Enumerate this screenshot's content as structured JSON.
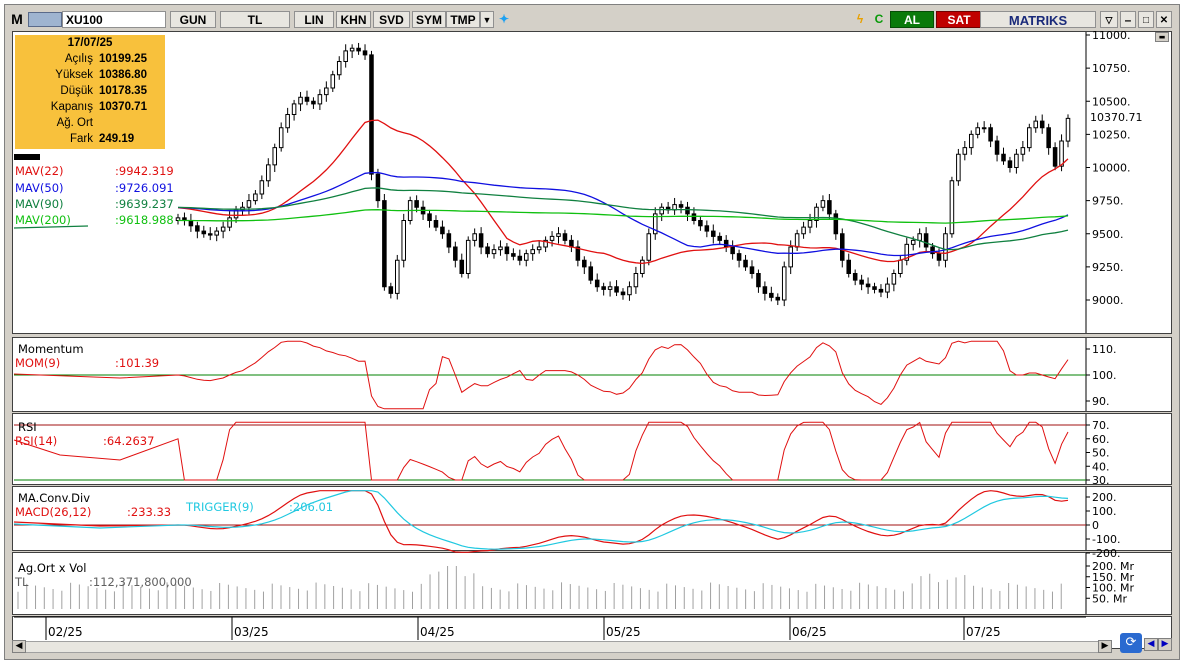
{
  "toolbar": {
    "logo": "M",
    "symbol": "XU100",
    "period": "GUN",
    "currency": "TL",
    "scale": "LIN",
    "buttons": [
      "KHN",
      "SVD",
      "SYM",
      "TMP"
    ],
    "buy_label": "AL",
    "sell_label": "SAT",
    "brand": "MATRIKS",
    "colors": {
      "buy": "#0a7a0a",
      "sell": "#c00000",
      "bg": "#d4d0c8"
    }
  },
  "info": {
    "date": "17/07/25",
    "rows": [
      {
        "label": "Açılış",
        "value": "10199.25"
      },
      {
        "label": "Yüksek",
        "value": "10386.80"
      },
      {
        "label": "Düşük",
        "value": "10178.35"
      },
      {
        "label": "Kapanış",
        "value": "10370.71"
      },
      {
        "label": "Ağ. Ort",
        "value": ""
      },
      {
        "label": "Fark",
        "value": "249.19"
      }
    ]
  },
  "price_panel": {
    "mav": [
      {
        "label": "MAV(22)",
        "value": ":9942.319",
        "color": "#e01010"
      },
      {
        "label": "MAV(50)",
        "value": ":9726.091",
        "color": "#1010e0"
      },
      {
        "label": "MAV(90)",
        "value": ":9639.237",
        "color": "#108040"
      },
      {
        "label": "MAV(200)",
        "value": ":9618.988",
        "color": "#10c010"
      }
    ],
    "last_price_label": "10370.71",
    "y_ticks": [
      "11000.",
      "10750.",
      "10500.",
      "10250.",
      "10000.",
      "9750.",
      "9500.",
      "9250.",
      "9000.",
      "8750."
    ]
  },
  "momentum_panel": {
    "title": "Momentum",
    "label": "MOM(9)",
    "value": ":101.39",
    "y_ticks": [
      "110.",
      "100.",
      "90."
    ]
  },
  "rsi_panel": {
    "title": "RSI",
    "label": "RSI(14)",
    "value": ":64.2637",
    "y_ticks": [
      "70.",
      "60.",
      "50.",
      "40.",
      "30."
    ]
  },
  "macd_panel": {
    "title": "MA.Conv.Div",
    "label": "MACD(26,12)",
    "value": ":233.33",
    "trigger_label": "TRIGGER(9)",
    "trigger_value": ":206.01",
    "y_ticks": [
      "200.",
      "100.",
      "0",
      "-100.",
      "-200."
    ]
  },
  "volume_panel": {
    "title": "Ag.Ort x Vol",
    "unit": "TL",
    "value": ":112,371,800,000",
    "y_ticks": [
      "200. Mr",
      "150. Mr",
      "100. Mr",
      "50. Mr"
    ]
  },
  "x_labels": [
    "02/25",
    "03/25",
    "04/25",
    "05/25",
    "06/25",
    "07/25"
  ],
  "chart_data": [
    {
      "type": "candlestick",
      "title": "XU100",
      "ylim": [
        8750,
        11000
      ],
      "x_range": [
        "2025-02-17",
        "2025-07-17"
      ],
      "candles_sample": [
        {
          "x": "2025-02-20",
          "open": 9500,
          "high": 9560,
          "low": 9440,
          "close": 9520
        },
        {
          "x": "2025-02-27",
          "open": 9470,
          "high": 9650,
          "low": 9450,
          "close": 9620
        },
        {
          "x": "2025-03-05",
          "open": 9900,
          "high": 10050,
          "low": 9880,
          "close": 10020
        },
        {
          "x": "2025-03-12",
          "open": 10400,
          "high": 10560,
          "low": 10380,
          "close": 10530
        },
        {
          "x": "2025-03-18",
          "open": 10850,
          "high": 10950,
          "low": 10820,
          "close": 10900
        },
        {
          "x": "2025-03-21",
          "open": 9950,
          "high": 10100,
          "low": 9700,
          "close": 9750
        },
        {
          "x": "2025-03-24",
          "open": 9400,
          "high": 9700,
          "low": 9000,
          "close": 9050
        },
        {
          "x": "2025-04-07",
          "open": 9300,
          "high": 9380,
          "low": 9050,
          "close": 9200
        },
        {
          "x": "2025-04-25",
          "open": 9350,
          "high": 9420,
          "low": 9250,
          "close": 9300
        },
        {
          "x": "2025-05-08",
          "open": 9100,
          "high": 9180,
          "low": 9050,
          "close": 9100
        },
        {
          "x": "2025-05-20",
          "open": 9700,
          "high": 9760,
          "low": 9620,
          "close": 9680
        },
        {
          "x": "2025-06-04",
          "open": 9200,
          "high": 9260,
          "low": 9000,
          "close": 9030
        },
        {
          "x": "2025-06-12",
          "open": 9650,
          "high": 9750,
          "low": 9580,
          "close": 9700
        },
        {
          "x": "2025-06-24",
          "open": 9150,
          "high": 9200,
          "low": 9080,
          "close": 9120
        },
        {
          "x": "2025-07-02",
          "open": 9500,
          "high": 9950,
          "low": 9400,
          "close": 9900
        },
        {
          "x": "2025-07-09",
          "open": 10300,
          "high": 10350,
          "low": 10200,
          "close": 10280
        },
        {
          "x": "2025-07-14",
          "open": 10250,
          "high": 10300,
          "low": 9980,
          "close": 10010
        },
        {
          "x": "2025-07-17",
          "open": 10199.25,
          "high": 10386.8,
          "low": 10178.35,
          "close": 10370.71
        }
      ],
      "series": [
        {
          "name": "MAV(22)",
          "last": 9942.319
        },
        {
          "name": "MAV(50)",
          "last": 9726.091
        },
        {
          "name": "MAV(90)",
          "last": 9639.237
        },
        {
          "name": "MAV(200)",
          "last": 9618.988
        }
      ]
    },
    {
      "type": "line",
      "title": "Momentum",
      "series": [
        {
          "name": "MOM(9)",
          "last": 101.39
        }
      ],
      "ylim": [
        86,
        114
      ]
    },
    {
      "type": "line",
      "title": "RSI",
      "series": [
        {
          "name": "RSI(14)",
          "last": 64.2637
        }
      ],
      "ylim": [
        28,
        74
      ]
    },
    {
      "type": "line",
      "title": "MA.Conv.Div",
      "series": [
        {
          "name": "MACD(26,12)",
          "last": 233.33
        },
        {
          "name": "TRIGGER(9)",
          "last": 206.01
        }
      ],
      "ylim": [
        -200,
        250
      ]
    },
    {
      "type": "bar",
      "title": "Ag.Ort x Vol",
      "series": [
        {
          "name": "TL",
          "last": 112371800000
        }
      ]
    }
  ]
}
